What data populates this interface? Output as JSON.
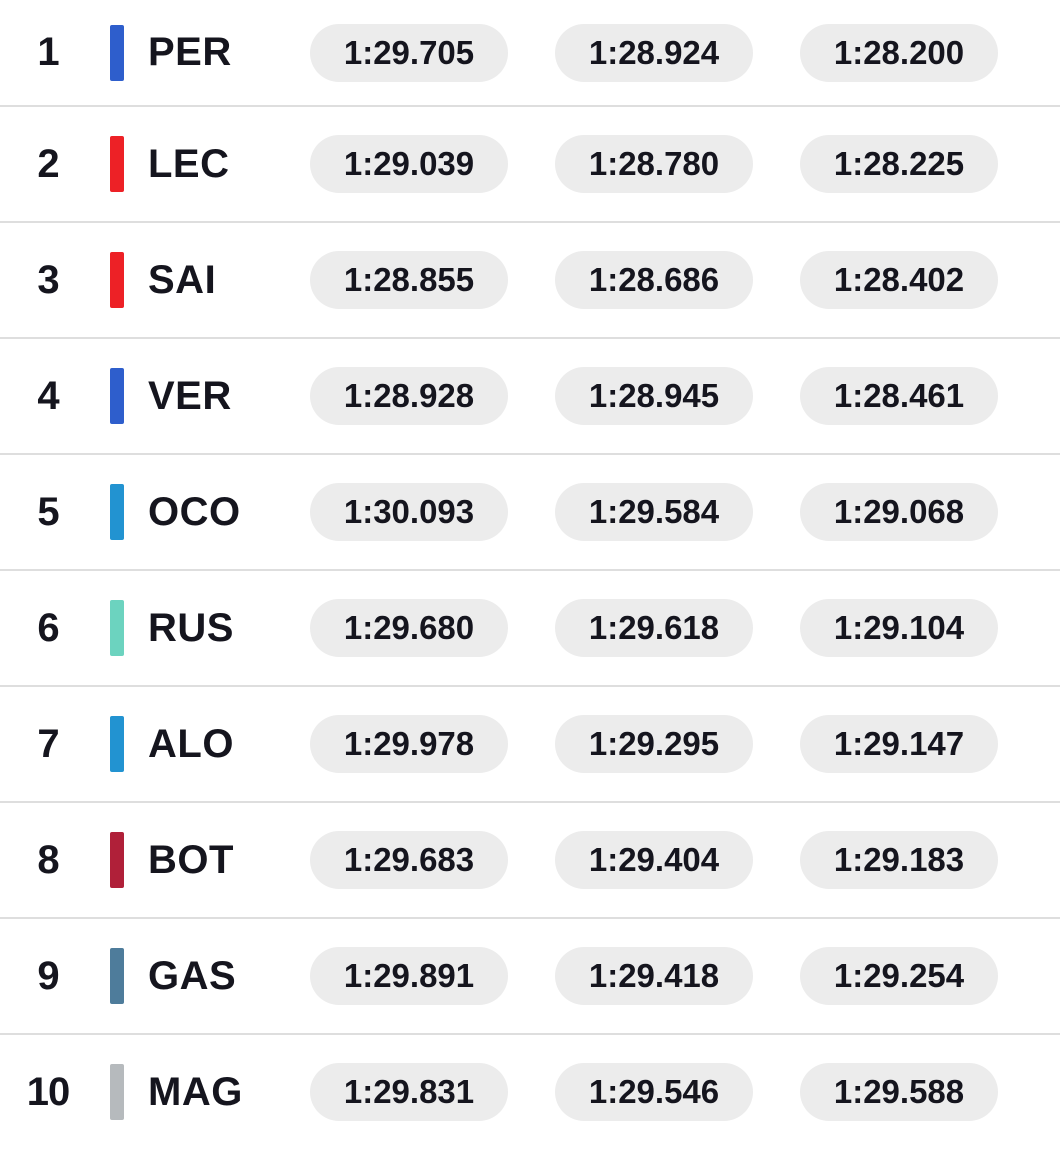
{
  "colors": {
    "background": "#ffffff",
    "row_divider": "#dedede",
    "pill_background": "#ececec",
    "text": "#15151e"
  },
  "rows": [
    {
      "position": "1",
      "driver": "PER",
      "team_color": "#2e5ecc",
      "times": [
        "1:29.705",
        "1:28.924",
        "1:28.200"
      ]
    },
    {
      "position": "2",
      "driver": "LEC",
      "team_color": "#ed2126",
      "times": [
        "1:29.039",
        "1:28.780",
        "1:28.225"
      ]
    },
    {
      "position": "3",
      "driver": "SAI",
      "team_color": "#ed2126",
      "times": [
        "1:28.855",
        "1:28.686",
        "1:28.402"
      ]
    },
    {
      "position": "4",
      "driver": "VER",
      "team_color": "#2e5ecc",
      "times": [
        "1:28.928",
        "1:28.945",
        "1:28.461"
      ]
    },
    {
      "position": "5",
      "driver": "OCO",
      "team_color": "#2293d1",
      "times": [
        "1:30.093",
        "1:29.584",
        "1:29.068"
      ]
    },
    {
      "position": "6",
      "driver": "RUS",
      "team_color": "#6cd3bf",
      "times": [
        "1:29.680",
        "1:29.618",
        "1:29.104"
      ]
    },
    {
      "position": "7",
      "driver": "ALO",
      "team_color": "#2293d1",
      "times": [
        "1:29.978",
        "1:29.295",
        "1:29.147"
      ]
    },
    {
      "position": "8",
      "driver": "BOT",
      "team_color": "#b02039",
      "times": [
        "1:29.683",
        "1:29.404",
        "1:29.183"
      ]
    },
    {
      "position": "9",
      "driver": "GAS",
      "team_color": "#4e7c9b",
      "times": [
        "1:29.891",
        "1:29.418",
        "1:29.254"
      ]
    },
    {
      "position": "10",
      "driver": "MAG",
      "team_color": "#b6babd",
      "times": [
        "1:29.831",
        "1:29.546",
        "1:29.588"
      ]
    }
  ]
}
